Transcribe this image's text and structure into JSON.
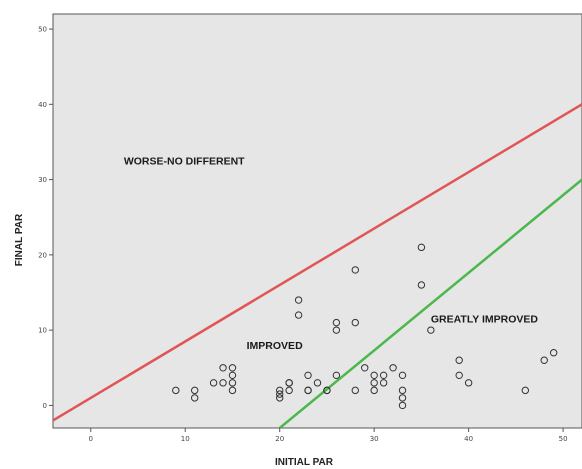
{
  "colors": {
    "plot_background": "#e6e6e6",
    "frame": "#555555",
    "worse_line": "#e05555",
    "improved_line": "#4cb84c",
    "point_stroke": "#333333"
  },
  "chart_data": {
    "type": "scatter",
    "xlabel": "INITIAL PAR",
    "ylabel": "FINAL PAR",
    "xlim": [
      -4,
      52
    ],
    "ylim": [
      -3,
      52
    ],
    "x_ticks": [
      0,
      10,
      20,
      30,
      40,
      50
    ],
    "y_ticks": [
      0,
      10,
      20,
      30,
      40,
      50
    ],
    "grid": false,
    "region_labels": [
      {
        "text": "WORSE-NO DIFFERENT",
        "x": 3.5,
        "y": 32
      },
      {
        "text": "IMPROVED",
        "x": 16.5,
        "y": 7.5
      },
      {
        "text": "GREATLY IMPROVED",
        "x": 36,
        "y": 11
      }
    ],
    "reference_lines": [
      {
        "label_ref": "worse-no-different boundary",
        "x": [
          -4,
          52
        ],
        "y": [
          -2,
          40
        ],
        "color": "#e05555"
      },
      {
        "label_ref": "greatly-improved boundary",
        "x": [
          20,
          52
        ],
        "y": [
          -3,
          30
        ],
        "color": "#4cb84c"
      }
    ],
    "points": [
      {
        "x": 9,
        "y": 2
      },
      {
        "x": 11,
        "y": 1
      },
      {
        "x": 11,
        "y": 2
      },
      {
        "x": 13,
        "y": 3
      },
      {
        "x": 14,
        "y": 3
      },
      {
        "x": 14,
        "y": 5
      },
      {
        "x": 15,
        "y": 2
      },
      {
        "x": 15,
        "y": 3
      },
      {
        "x": 15,
        "y": 4
      },
      {
        "x": 15,
        "y": 5
      },
      {
        "x": 20,
        "y": 1
      },
      {
        "x": 20,
        "y": 1.5
      },
      {
        "x": 20,
        "y": 2
      },
      {
        "x": 21,
        "y": 2
      },
      {
        "x": 21,
        "y": 3
      },
      {
        "x": 21,
        "y": 3
      },
      {
        "x": 22,
        "y": 12
      },
      {
        "x": 22,
        "y": 14
      },
      {
        "x": 23,
        "y": 2
      },
      {
        "x": 23,
        "y": 2
      },
      {
        "x": 23,
        "y": 4
      },
      {
        "x": 24,
        "y": 3
      },
      {
        "x": 25,
        "y": 2
      },
      {
        "x": 25,
        "y": 2
      },
      {
        "x": 26,
        "y": 4
      },
      {
        "x": 26,
        "y": 10
      },
      {
        "x": 26,
        "y": 11
      },
      {
        "x": 28,
        "y": 2
      },
      {
        "x": 28,
        "y": 11
      },
      {
        "x": 28,
        "y": 18
      },
      {
        "x": 29,
        "y": 5
      },
      {
        "x": 30,
        "y": 2
      },
      {
        "x": 30,
        "y": 3
      },
      {
        "x": 30,
        "y": 4
      },
      {
        "x": 31,
        "y": 3
      },
      {
        "x": 31,
        "y": 4
      },
      {
        "x": 32,
        "y": 5
      },
      {
        "x": 33,
        "y": 0
      },
      {
        "x": 33,
        "y": 1
      },
      {
        "x": 33,
        "y": 2
      },
      {
        "x": 33,
        "y": 4
      },
      {
        "x": 35,
        "y": 16
      },
      {
        "x": 35,
        "y": 21
      },
      {
        "x": 36,
        "y": 10
      },
      {
        "x": 39,
        "y": 4
      },
      {
        "x": 39,
        "y": 6
      },
      {
        "x": 40,
        "y": 3
      },
      {
        "x": 46,
        "y": 2
      },
      {
        "x": 48,
        "y": 6
      },
      {
        "x": 49,
        "y": 7
      }
    ]
  }
}
